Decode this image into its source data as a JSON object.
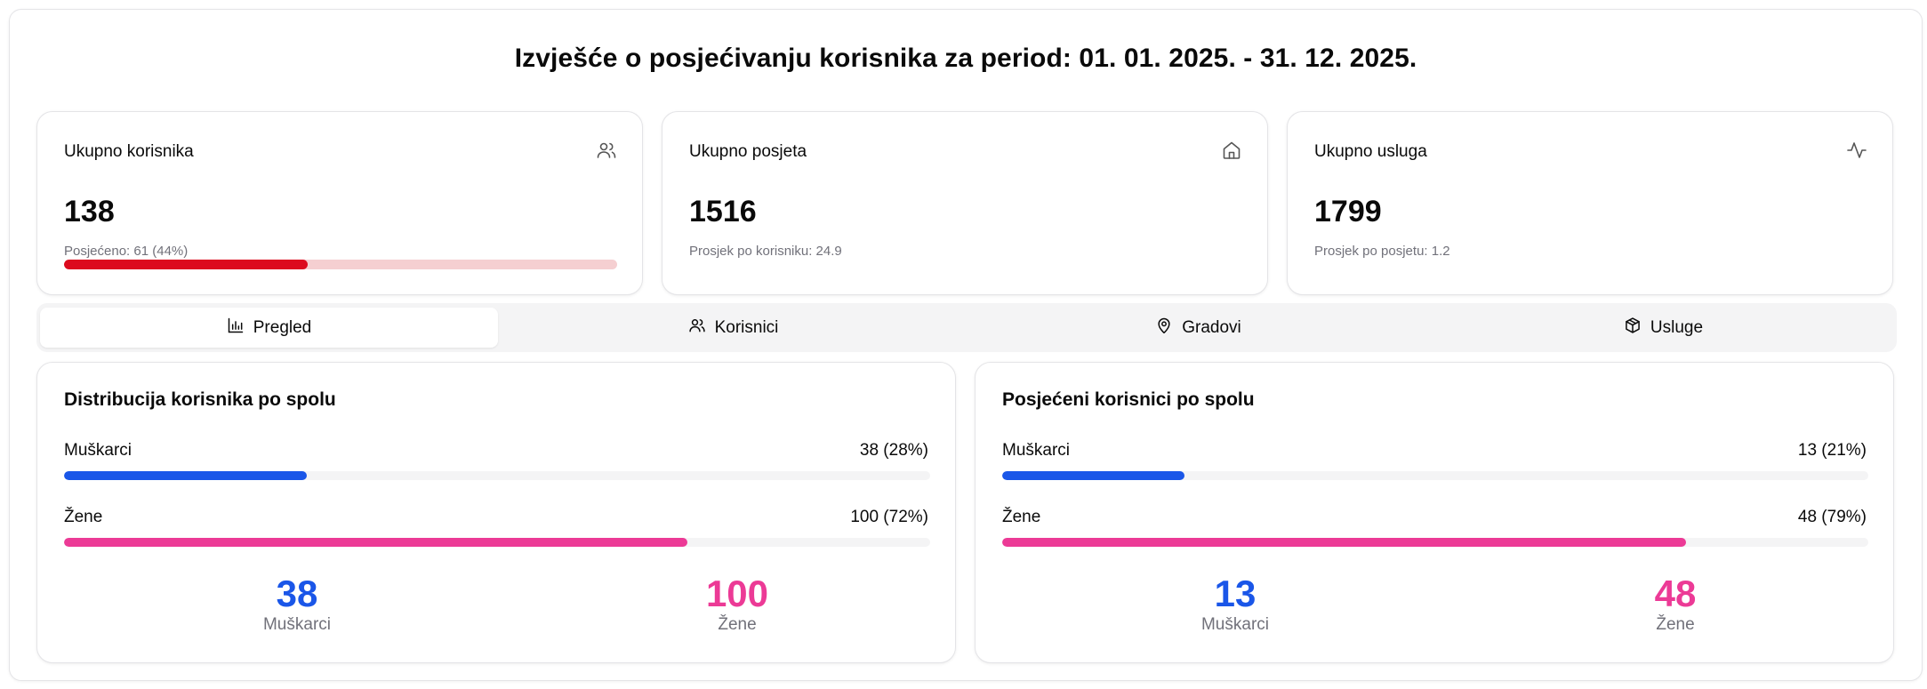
{
  "report": {
    "title": "Izvješće o posjećivanju korisnika za period: 01. 01. 2025. - 31. 12. 2025."
  },
  "stats": [
    {
      "label": "Ukupno korisnika",
      "value": "138",
      "sub": "Posjećeno: 61 (44%)",
      "icon": "users-icon",
      "progress": 0.44
    },
    {
      "label": "Ukupno posjeta",
      "value": "1516",
      "sub": "Prosjek po korisniku: 24.9",
      "icon": "home-icon"
    },
    {
      "label": "Ukupno usluga",
      "value": "1799",
      "sub": "Prosjek po posjetu: 1.2",
      "icon": "activity-icon"
    }
  ],
  "tabs": [
    {
      "label": "Pregled",
      "icon": "bar-chart-icon",
      "active": true
    },
    {
      "label": "Korisnici",
      "icon": "users-icon",
      "active": false
    },
    {
      "label": "Gradovi",
      "icon": "map-pin-icon",
      "active": false
    },
    {
      "label": "Usluge",
      "icon": "package-icon",
      "active": false
    }
  ],
  "panels": [
    {
      "title": "Distribucija korisnika po spolu",
      "rows": [
        {
          "label": "Muškarci",
          "value": "38 (28%)",
          "fraction": 0.28
        },
        {
          "label": "Žene",
          "value": "100 (72%)",
          "fraction": 0.72
        }
      ],
      "totals": [
        {
          "number": "38",
          "label": "Muškarci"
        },
        {
          "number": "100",
          "label": "Žene"
        }
      ]
    },
    {
      "title": "Posjećeni korisnici po spolu",
      "rows": [
        {
          "label": "Muškarci",
          "value": "13 (21%)",
          "fraction": 0.21
        },
        {
          "label": "Žene",
          "value": "48 (79%)",
          "fraction": 0.79
        }
      ],
      "totals": [
        {
          "number": "13",
          "label": "Muškarci"
        },
        {
          "number": "48",
          "label": "Žene"
        }
      ]
    }
  ],
  "colors": {
    "male": "#1a56e8",
    "female": "#ec3a96",
    "progress": "#dc0a1e",
    "progress_track": "#f5cfd1"
  }
}
